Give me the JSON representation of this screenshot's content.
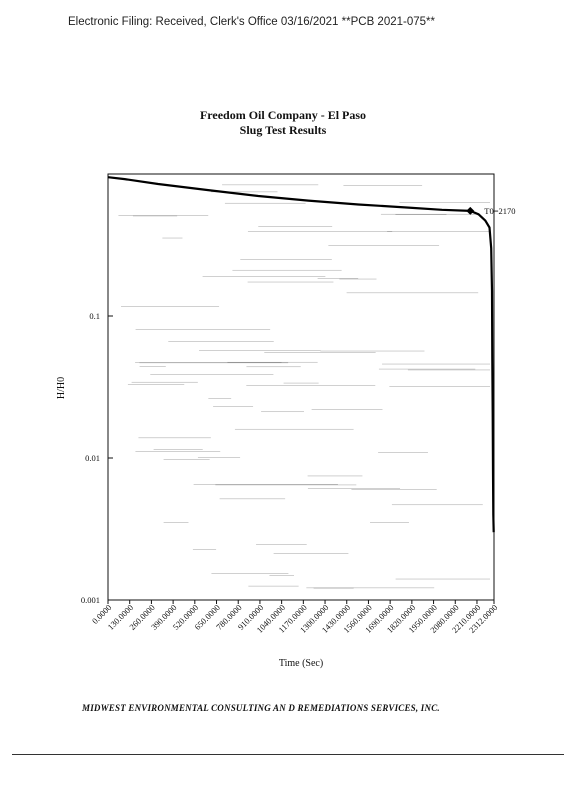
{
  "header": {
    "filing_text": "Electronic Filing: Received, Clerk's Office 03/16/2021 **PCB 2021-075**"
  },
  "footer": {
    "text": "MIDWEST ENVIRONMENTAL CONSULTING AN D REMEDIATIONS SERVICES, INC."
  },
  "chart_data": {
    "type": "line",
    "title": "Freedom Oil Company - El Paso",
    "subtitle": "Slug Test Results",
    "xlabel": "Time (Sec)",
    "ylabel": "H/H0",
    "y_scale": "log",
    "ylim": [
      0.001,
      1
    ],
    "xlim": [
      0,
      2312
    ],
    "grid": false,
    "x_tick_labels": [
      "0.0000",
      "130.0000",
      "260.0000",
      "390.0000",
      "520.0000",
      "650.0000",
      "780.0000",
      "910.0000",
      "1040.0000",
      "1170.0000",
      "1300.0000",
      "1430.0000",
      "1560.0000",
      "1690.0000",
      "1820.0000",
      "1950.0000",
      "2080.0000",
      "2210.0000",
      "2312.0000"
    ],
    "x_tick_values": [
      0,
      130,
      260,
      390,
      520,
      650,
      780,
      910,
      1040,
      1170,
      1300,
      1430,
      1560,
      1690,
      1820,
      1950,
      2080,
      2210,
      2312
    ],
    "y_tick_labels": [
      "0.1",
      "0.01",
      "0.001"
    ],
    "y_tick_values": [
      0.1,
      0.01,
      0.001
    ],
    "annotation": {
      "text": "T0=2170",
      "x": 2170,
      "y": 0.55
    },
    "series": [
      {
        "x": [
          0,
          100,
          300,
          600,
          900,
          1200,
          1500,
          1800,
          2000,
          2170,
          2220,
          2260,
          2285,
          2295,
          2300,
          2302,
          2304,
          2306,
          2308,
          2310
        ],
        "y": [
          0.95,
          0.92,
          0.85,
          0.77,
          0.7,
          0.65,
          0.61,
          0.58,
          0.56,
          0.55,
          0.52,
          0.47,
          0.42,
          0.3,
          0.15,
          0.05,
          0.02,
          0.008,
          0.004,
          0.003
        ]
      }
    ]
  }
}
